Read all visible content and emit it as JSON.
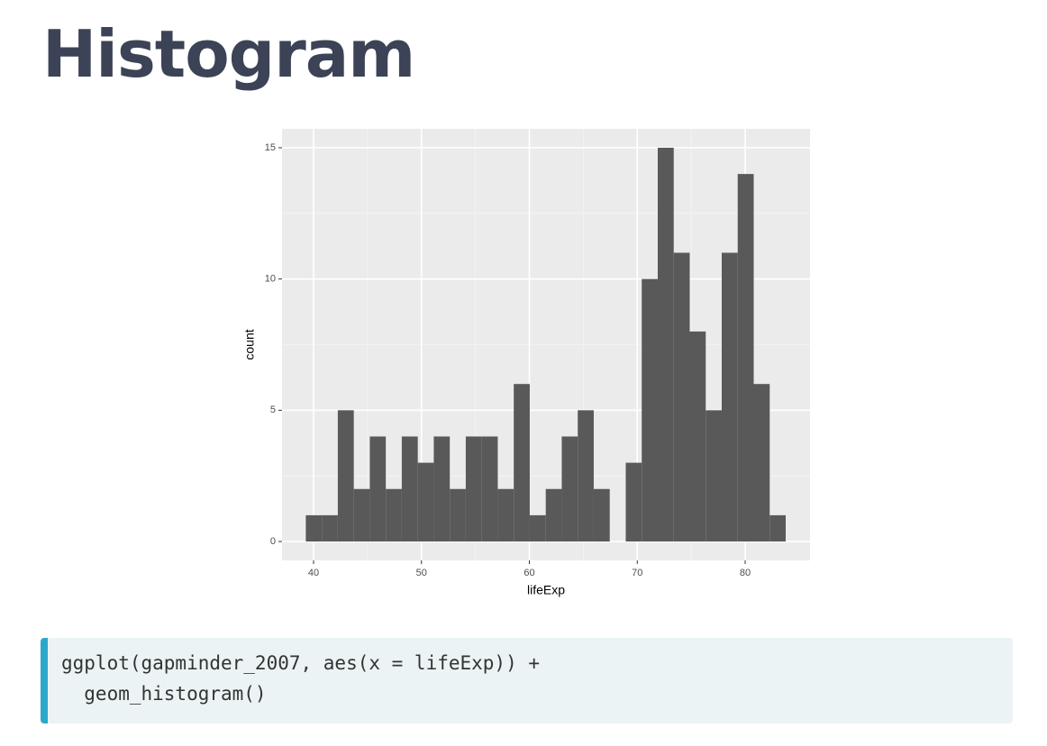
{
  "header": {
    "title": "Histogram"
  },
  "chart_data": {
    "type": "histogram",
    "x_label": "lifeExp",
    "y_label": "count",
    "bins": [
      39.284,
      40.766,
      42.249,
      43.731,
      45.214,
      46.696,
      48.178,
      49.661,
      51.143,
      52.626,
      54.108,
      55.59,
      57.073,
      58.555,
      60.038,
      61.52,
      63.002,
      64.485,
      65.967,
      67.45,
      68.932,
      70.414,
      71.897,
      73.379,
      74.862,
      76.344,
      77.826,
      79.309,
      80.791,
      82.274,
      83.756
    ],
    "values": [
      1,
      1,
      5,
      2,
      4,
      2,
      4,
      3,
      4,
      2,
      4,
      4,
      2,
      6,
      1,
      2,
      4,
      5,
      2,
      0,
      3,
      10,
      15,
      11,
      8,
      5,
      11,
      14,
      6,
      1
    ],
    "color": "#595959",
    "xlim": [
      37.08,
      86.01
    ],
    "xticks": [
      40,
      50,
      60,
      70,
      80
    ],
    "ylim": [
      -0.72,
      15.72
    ],
    "yticks": [
      0,
      5,
      10,
      15
    ],
    "grid": true
  },
  "code": {
    "lines": [
      "ggplot(gapminder_2007, aes(x = lifeExp)) +",
      "  geom_histogram()"
    ]
  }
}
